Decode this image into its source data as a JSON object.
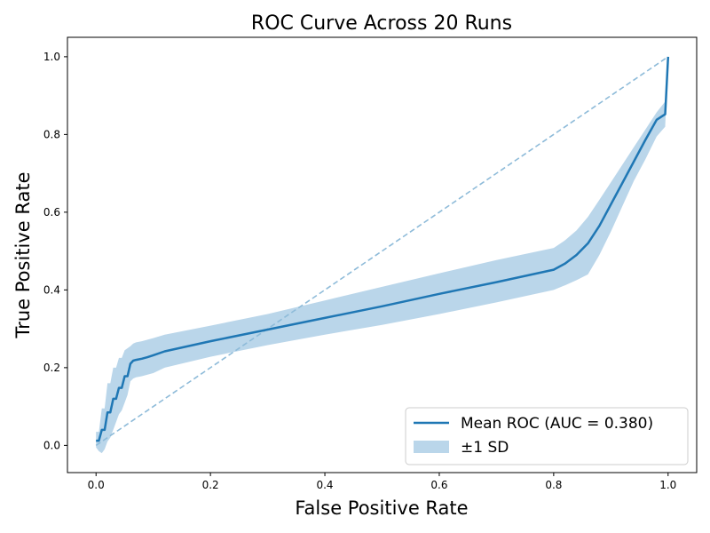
{
  "chart_data": {
    "type": "line",
    "title": "ROC Curve Across 20 Runs",
    "xlabel": "False Positive Rate",
    "ylabel": "True Positive Rate",
    "xlim": [
      -0.05,
      1.05
    ],
    "ylim": [
      -0.07,
      1.05
    ],
    "xticks": [
      0.0,
      0.2,
      0.4,
      0.6,
      0.8,
      1.0
    ],
    "yticks": [
      0.0,
      0.2,
      0.4,
      0.6,
      0.8,
      1.0
    ],
    "xtick_labels": [
      "0.0",
      "0.2",
      "0.4",
      "0.6",
      "0.8",
      "1.0"
    ],
    "ytick_labels": [
      "0.0",
      "0.2",
      "0.4",
      "0.6",
      "0.8",
      "1.0"
    ],
    "grid": false,
    "legend_position": "lower-right",
    "colors": {
      "mean": "#1f77b4",
      "band": "#bad6ea",
      "chance": "#8ebbd9"
    },
    "series": [
      {
        "name": "Mean ROC (AUC = 0.380)",
        "style": "solid",
        "x": [
          0.0,
          0.005,
          0.01,
          0.015,
          0.02,
          0.025,
          0.03,
          0.035,
          0.04,
          0.045,
          0.05,
          0.055,
          0.06,
          0.065,
          0.07,
          0.08,
          0.09,
          0.1,
          0.12,
          0.2,
          0.3,
          0.4,
          0.5,
          0.6,
          0.7,
          0.8,
          0.82,
          0.84,
          0.86,
          0.88,
          0.9,
          0.92,
          0.94,
          0.96,
          0.98,
          0.995,
          1.0
        ],
        "y": [
          0.012,
          0.012,
          0.04,
          0.04,
          0.085,
          0.085,
          0.12,
          0.12,
          0.148,
          0.148,
          0.178,
          0.178,
          0.21,
          0.218,
          0.22,
          0.223,
          0.227,
          0.232,
          0.242,
          0.268,
          0.298,
          0.328,
          0.358,
          0.39,
          0.42,
          0.452,
          0.468,
          0.49,
          0.52,
          0.565,
          0.62,
          0.675,
          0.73,
          0.785,
          0.838,
          0.852,
          1.0
        ]
      },
      {
        "name": "±1 SD",
        "style": "band",
        "x": [
          0.0,
          0.005,
          0.01,
          0.015,
          0.02,
          0.025,
          0.03,
          0.035,
          0.04,
          0.045,
          0.05,
          0.055,
          0.06,
          0.065,
          0.07,
          0.08,
          0.09,
          0.1,
          0.12,
          0.2,
          0.3,
          0.4,
          0.5,
          0.6,
          0.7,
          0.8,
          0.82,
          0.84,
          0.86,
          0.88,
          0.9,
          0.92,
          0.94,
          0.96,
          0.98,
          0.995,
          1.0
        ],
        "upper": [
          0.035,
          0.035,
          0.095,
          0.095,
          0.16,
          0.16,
          0.2,
          0.2,
          0.225,
          0.225,
          0.245,
          0.25,
          0.255,
          0.262,
          0.265,
          0.268,
          0.272,
          0.276,
          0.285,
          0.308,
          0.338,
          0.373,
          0.408,
          0.443,
          0.477,
          0.508,
          0.528,
          0.553,
          0.588,
          0.632,
          0.677,
          0.722,
          0.767,
          0.812,
          0.857,
          0.885,
          1.0
        ],
        "lower": [
          -0.005,
          -0.015,
          -0.02,
          -0.01,
          0.01,
          0.02,
          0.04,
          0.06,
          0.08,
          0.09,
          0.11,
          0.13,
          0.165,
          0.172,
          0.175,
          0.178,
          0.182,
          0.186,
          0.2,
          0.228,
          0.258,
          0.285,
          0.31,
          0.338,
          0.368,
          0.4,
          0.412,
          0.425,
          0.44,
          0.49,
          0.55,
          0.615,
          0.68,
          0.735,
          0.795,
          0.82,
          1.0
        ]
      },
      {
        "name": "",
        "style": "dashed",
        "x": [
          0.0,
          1.0
        ],
        "y": [
          0.0,
          1.0
        ]
      }
    ],
    "legend": [
      {
        "label": "Mean ROC (AUC = 0.380)",
        "kind": "line"
      },
      {
        "label": "±1 SD",
        "kind": "patch"
      }
    ]
  }
}
